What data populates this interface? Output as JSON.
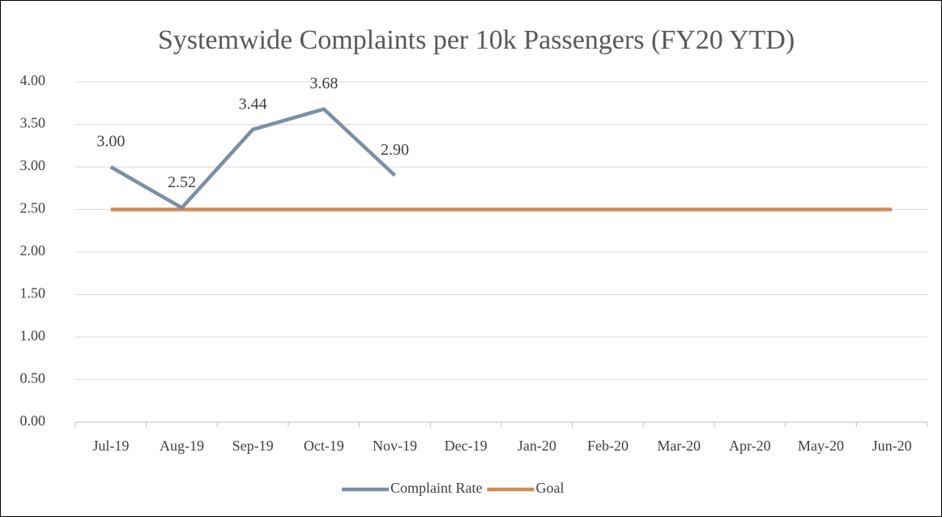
{
  "chart_data": {
    "type": "line",
    "title": "Systemwide Complaints per 10k Passengers (FY20 YTD)",
    "categories": [
      "Jul-19",
      "Aug-19",
      "Sep-19",
      "Oct-19",
      "Nov-19",
      "Dec-19",
      "Jan-20",
      "Feb-20",
      "Mar-20",
      "Apr-20",
      "May-20",
      "Jun-20"
    ],
    "series": [
      {
        "name": "Complaint Rate",
        "color": "#7a8fa6",
        "values": [
          3.0,
          2.52,
          3.44,
          3.68,
          2.9,
          null,
          null,
          null,
          null,
          null,
          null,
          null
        ],
        "value_labels": [
          "3.00",
          "2.52",
          "3.44",
          "3.68",
          "2.90",
          null,
          null,
          null,
          null,
          null,
          null,
          null
        ]
      },
      {
        "name": "Goal",
        "color": "#d18b59",
        "values": [
          2.5,
          2.5,
          2.5,
          2.5,
          2.5,
          2.5,
          2.5,
          2.5,
          2.5,
          2.5,
          2.5,
          2.5
        ]
      }
    ],
    "ylim": [
      0,
      4
    ],
    "yticks": [
      {
        "value": 0,
        "label": "0.00"
      },
      {
        "value": 0.5,
        "label": "0.50"
      },
      {
        "value": 1,
        "label": "1.00"
      },
      {
        "value": 1.5,
        "label": "1.50"
      },
      {
        "value": 2,
        "label": "2.00"
      },
      {
        "value": 2.5,
        "label": "2.50"
      },
      {
        "value": 3,
        "label": "3.00"
      },
      {
        "value": 3.5,
        "label": "3.50"
      },
      {
        "value": 4,
        "label": "4.00"
      }
    ],
    "grid": true,
    "legend": "bottom"
  }
}
